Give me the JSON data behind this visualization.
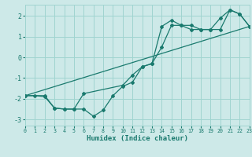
{
  "xlabel": "Humidex (Indice chaleur)",
  "bg_color": "#cde9e8",
  "grid_color": "#a0d4d0",
  "line_color": "#1a7a6e",
  "xlim": [
    0,
    23
  ],
  "ylim": [
    -3.3,
    2.55
  ],
  "xticks": [
    0,
    1,
    2,
    3,
    4,
    5,
    6,
    7,
    8,
    9,
    10,
    11,
    12,
    13,
    14,
    15,
    16,
    17,
    18,
    19,
    20,
    21,
    22,
    23
  ],
  "yticks": [
    -3,
    -2,
    -1,
    0,
    1,
    2
  ],
  "line1_x": [
    0,
    1,
    2,
    3,
    4,
    5,
    6,
    7,
    8,
    9,
    10,
    11,
    12,
    13,
    14,
    15,
    16,
    17,
    18,
    19,
    20,
    21,
    22,
    23
  ],
  "line1_y": [
    -1.85,
    -1.85,
    -1.9,
    -2.45,
    -2.5,
    -2.5,
    -2.5,
    -2.85,
    -2.55,
    -1.85,
    -1.4,
    -1.2,
    -0.45,
    -0.3,
    1.5,
    1.8,
    1.55,
    1.55,
    1.35,
    1.35,
    1.9,
    2.3,
    2.1,
    1.5
  ],
  "line2_x": [
    0,
    2,
    3,
    4,
    5,
    6,
    10,
    11,
    12,
    13,
    14,
    15,
    16,
    17,
    18,
    19,
    20,
    21,
    22,
    23
  ],
  "line2_y": [
    -1.85,
    -1.85,
    -2.45,
    -2.5,
    -2.5,
    -1.75,
    -1.35,
    -0.85,
    -0.45,
    -0.3,
    0.5,
    1.55,
    1.55,
    1.35,
    1.35,
    1.35,
    1.35,
    2.3,
    2.1,
    1.5
  ],
  "line3_x": [
    0,
    23
  ],
  "line3_y": [
    -1.85,
    1.5
  ],
  "ytick_labels": [
    "-3",
    "-2",
    "-1",
    "0",
    "1",
    "2"
  ]
}
